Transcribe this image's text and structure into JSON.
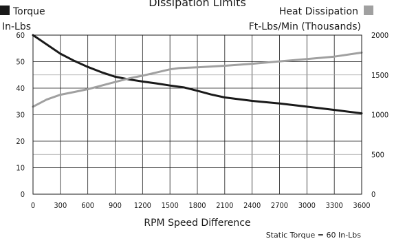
{
  "chart_data": {
    "type": "line",
    "title": "Dissipation Limits",
    "xlabel": "RPM Speed Difference",
    "x_ticks": [
      "0",
      "300",
      "600",
      "900",
      "1200",
      "1500",
      "1800",
      "2100",
      "2400",
      "2700",
      "3000",
      "3300",
      "3600"
    ],
    "xlim": [
      0,
      3600
    ],
    "left_axis": {
      "label_line1": "Torque",
      "label_line2": "In-Lbs",
      "ylim": [
        0,
        60
      ],
      "ticks": [
        "0",
        "10",
        "20",
        "30",
        "40",
        "50",
        "60"
      ]
    },
    "right_axis": {
      "label_line1": "Heat Dissipation",
      "label_line2": "Ft-Lbs/Min (Thousands)",
      "ylim": [
        0,
        2000
      ],
      "ticks": [
        "0",
        "500",
        "1000",
        "1500",
        "2000"
      ]
    },
    "series": [
      {
        "name": "Torque",
        "axis": "left",
        "color": "#1a1a1a",
        "x": [
          0,
          150,
          300,
          450,
          600,
          750,
          900,
          1050,
          1200,
          1350,
          1500,
          1650,
          1800,
          1950,
          2100,
          2400,
          2700,
          3000,
          3300,
          3600
        ],
        "values": [
          60,
          56.5,
          53,
          50.3,
          48,
          46,
          44.3,
          43.3,
          42.5,
          41.8,
          41,
          40.3,
          39,
          37.6,
          36.5,
          35.2,
          34.2,
          33,
          31.8,
          30.5
        ]
      },
      {
        "name": "Heat Dissipation",
        "axis": "right",
        "color": "#a0a0a0",
        "x": [
          0,
          150,
          300,
          450,
          600,
          750,
          900,
          1050,
          1200,
          1350,
          1500,
          1600,
          1800,
          2100,
          2400,
          2700,
          3000,
          3300,
          3600
        ],
        "values": [
          1100,
          1190,
          1250,
          1285,
          1320,
          1365,
          1410,
          1455,
          1490,
          1530,
          1570,
          1585,
          1595,
          1615,
          1640,
          1670,
          1700,
          1730,
          1780
        ]
      }
    ],
    "grid": {
      "horizontal": true,
      "vertical": true
    },
    "note": "Static Torque = 60 In-Lbs"
  }
}
